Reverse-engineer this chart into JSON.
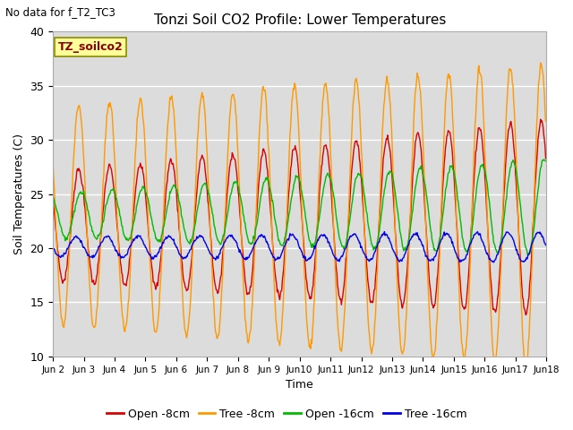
{
  "title": "Tonzi Soil CO2 Profile: Lower Temperatures",
  "subtitle": "No data for f_T2_TC3",
  "ylabel": "Soil Temperatures (C)",
  "xlabel": "Time",
  "ylim": [
    10,
    40
  ],
  "yticks": [
    10,
    15,
    20,
    25,
    30,
    35,
    40
  ],
  "legend_label": "TZ_soilco2",
  "series_labels": [
    "Open -8cm",
    "Tree -8cm",
    "Open -16cm",
    "Tree -16cm"
  ],
  "series_colors": [
    "#dd0000",
    "#ff9900",
    "#00bb00",
    "#0000ee"
  ],
  "bg_color": "#dcdcdc",
  "n_days": 16,
  "n_pts_per_day": 48,
  "peak_hour": 14,
  "trough_hour": 5
}
